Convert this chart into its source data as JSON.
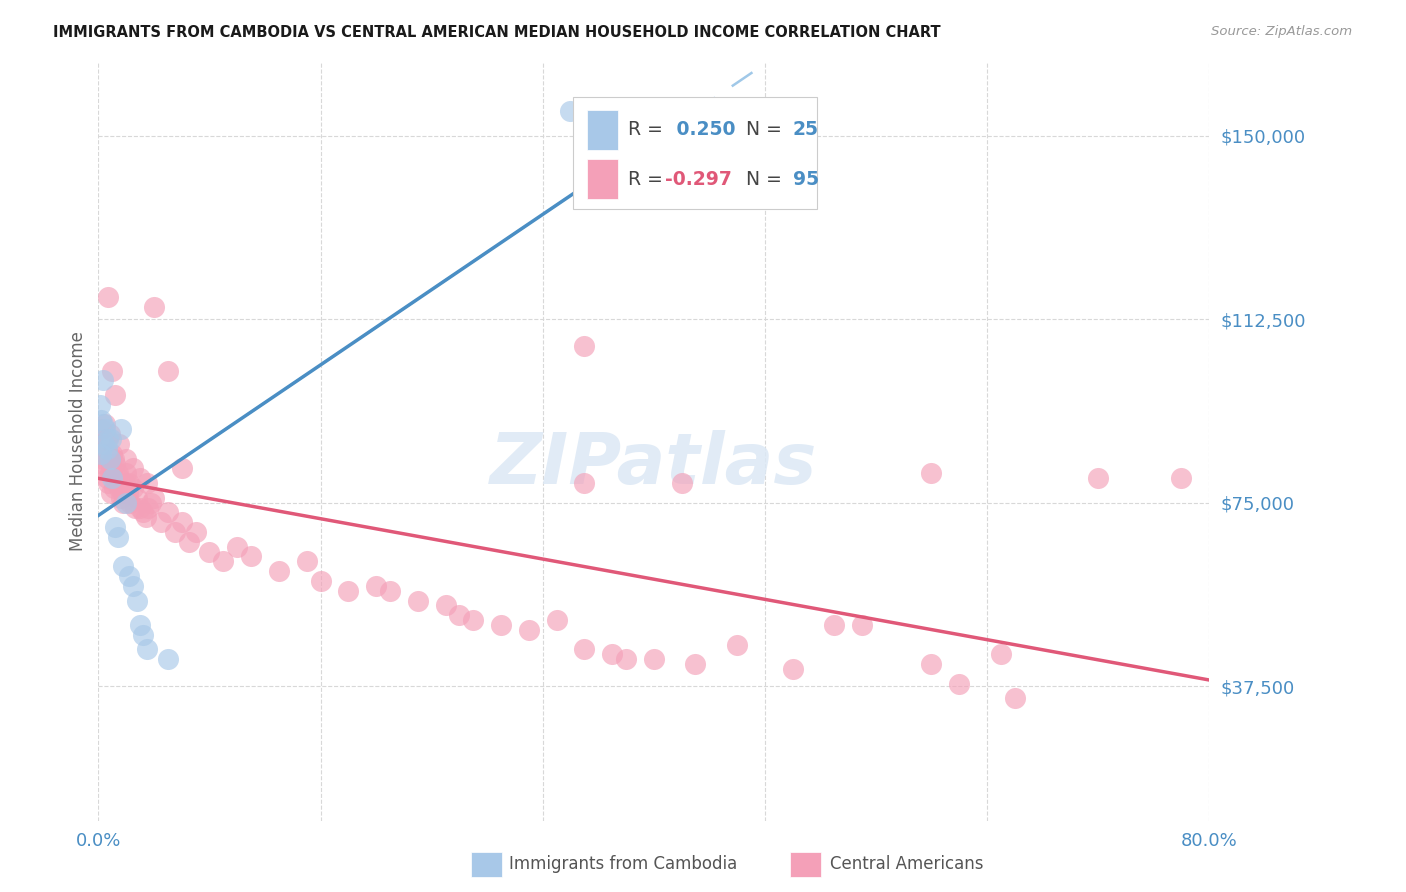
{
  "title": "IMMIGRANTS FROM CAMBODIA VS CENTRAL AMERICAN MEDIAN HOUSEHOLD INCOME CORRELATION CHART",
  "source": "Source: ZipAtlas.com",
  "ylabel": "Median Household Income",
  "ytick_vals": [
    37500,
    75000,
    112500,
    150000
  ],
  "ytick_labels": [
    "$37,500",
    "$75,000",
    "$112,500",
    "$150,000"
  ],
  "ylim": [
    10000,
    165000
  ],
  "xlim": [
    0.0,
    0.8
  ],
  "xtick_vals": [
    0.0,
    0.8
  ],
  "xtick_labels": [
    "0.0%",
    "80.0%"
  ],
  "color_blue_dot": "#a8c8e8",
  "color_pink_dot": "#f4a0b8",
  "color_blue_line": "#4a8ec4",
  "color_pink_line": "#e05878",
  "color_blue_dashed": "#a0c8e8",
  "color_axis_text": "#4a8ec4",
  "color_grid": "#d8d8d8",
  "legend_r1_val": "0.250",
  "legend_n1_val": "25",
  "legend_r2_val": "-0.297",
  "legend_n2_val": "95",
  "cam_x": [
    0.001,
    0.002,
    0.003,
    0.003,
    0.004,
    0.005,
    0.006,
    0.007,
    0.008,
    0.009,
    0.01,
    0.012,
    0.014,
    0.016,
    0.018,
    0.02,
    0.022,
    0.025,
    0.028,
    0.03,
    0.032,
    0.035,
    0.05,
    0.34,
    0.002
  ],
  "cam_y": [
    95000,
    92000,
    100000,
    91000,
    87000,
    90000,
    86000,
    88000,
    84000,
    88000,
    80000,
    70000,
    68000,
    90000,
    62000,
    75000,
    60000,
    58000,
    55000,
    50000,
    48000,
    45000,
    43000,
    155000,
    85000
  ],
  "cen_x": [
    0.002,
    0.003,
    0.003,
    0.004,
    0.004,
    0.005,
    0.005,
    0.006,
    0.006,
    0.007,
    0.007,
    0.008,
    0.008,
    0.009,
    0.009,
    0.01,
    0.01,
    0.011,
    0.011,
    0.012,
    0.013,
    0.014,
    0.015,
    0.015,
    0.016,
    0.017,
    0.018,
    0.018,
    0.019,
    0.02,
    0.021,
    0.022,
    0.023,
    0.025,
    0.026,
    0.028,
    0.03,
    0.032,
    0.034,
    0.036,
    0.038,
    0.04,
    0.045,
    0.05,
    0.055,
    0.06,
    0.065,
    0.07,
    0.08,
    0.09,
    0.1,
    0.11,
    0.13,
    0.15,
    0.16,
    0.18,
    0.2,
    0.21,
    0.23,
    0.25,
    0.26,
    0.27,
    0.29,
    0.31,
    0.33,
    0.35,
    0.37,
    0.4,
    0.43,
    0.46,
    0.5,
    0.55,
    0.6,
    0.65,
    0.007,
    0.01,
    0.012,
    0.015,
    0.02,
    0.025,
    0.03,
    0.035,
    0.04,
    0.05,
    0.06,
    0.35,
    0.38,
    0.6,
    0.62,
    0.72,
    0.35,
    0.42,
    0.53,
    0.66,
    0.78
  ],
  "cen_y": [
    90000,
    88000,
    84000,
    87000,
    83000,
    91000,
    82000,
    88000,
    80000,
    85000,
    79000,
    89000,
    81000,
    83000,
    77000,
    85000,
    81000,
    84000,
    78000,
    83000,
    79000,
    81000,
    78000,
    80000,
    76000,
    78000,
    75000,
    77000,
    79000,
    81000,
    77000,
    79000,
    75000,
    78000,
    74000,
    76000,
    74000,
    73000,
    72000,
    74000,
    75000,
    76000,
    71000,
    73000,
    69000,
    71000,
    67000,
    69000,
    65000,
    63000,
    66000,
    64000,
    61000,
    63000,
    59000,
    57000,
    58000,
    57000,
    55000,
    54000,
    52000,
    51000,
    50000,
    49000,
    51000,
    45000,
    44000,
    43000,
    42000,
    46000,
    41000,
    50000,
    42000,
    44000,
    117000,
    102000,
    97000,
    87000,
    84000,
    82000,
    80000,
    79000,
    115000,
    102000,
    82000,
    107000,
    43000,
    81000,
    38000,
    80000,
    79000,
    79000,
    50000,
    35000,
    80000
  ]
}
